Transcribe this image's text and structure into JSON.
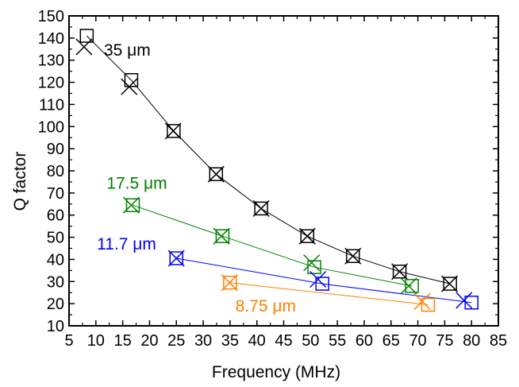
{
  "chart_data": {
    "type": "scatter",
    "title": "",
    "xlabel": "Frequency (MHz)",
    "ylabel": "Q factor",
    "xlim": [
      5,
      85
    ],
    "ylim": [
      10,
      150
    ],
    "xticks": [
      5,
      10,
      15,
      20,
      25,
      30,
      35,
      40,
      45,
      50,
      55,
      60,
      65,
      70,
      75,
      80,
      85
    ],
    "yticks": [
      10,
      20,
      30,
      40,
      50,
      60,
      70,
      80,
      90,
      100,
      110,
      120,
      130,
      140,
      150
    ],
    "grid": false,
    "marker_legend": [
      "square",
      "cross"
    ],
    "series": [
      {
        "name": "35 μm",
        "color": "#000000",
        "square": [
          [
            8.3,
            141
          ],
          [
            16.6,
            121
          ],
          [
            24.5,
            98
          ],
          [
            32.4,
            78.5
          ],
          [
            40.8,
            63
          ],
          [
            49.4,
            50.5
          ],
          [
            57.9,
            41.5
          ],
          [
            66.6,
            34.5
          ],
          [
            76.0,
            29
          ]
        ],
        "cross": [
          [
            7.8,
            136
          ],
          [
            16.2,
            118
          ],
          [
            24.4,
            98
          ],
          [
            32.4,
            78.5
          ],
          [
            40.8,
            63
          ],
          [
            49.4,
            50.5
          ],
          [
            57.9,
            41.5
          ],
          [
            66.6,
            34.5
          ],
          [
            75.9,
            29
          ]
        ]
      },
      {
        "name": "17.5 μm",
        "color": "#008000",
        "square": [
          [
            16.9,
            64.5
          ],
          [
            33.6,
            50.5
          ],
          [
            50.7,
            36.5
          ],
          [
            68.9,
            28
          ]
        ],
        "cross": [
          [
            16.6,
            64.5
          ],
          [
            33.4,
            50.5
          ],
          [
            50.2,
            38.5
          ],
          [
            68.3,
            28
          ]
        ]
      },
      {
        "name": "11.7 μm",
        "color": "#0000ff",
        "square": [
          [
            25.0,
            40.5
          ],
          [
            52.2,
            29
          ],
          [
            80.0,
            20.5
          ]
        ],
        "cross": [
          [
            25.0,
            40.5
          ],
          [
            51.4,
            31
          ],
          [
            78.6,
            21.5
          ]
        ]
      },
      {
        "name": "8.75 μm",
        "color": "#ff7f00",
        "square": [
          [
            35.0,
            29.5
          ],
          [
            71.9,
            19.5
          ]
        ],
        "cross": [
          [
            34.9,
            29.5
          ],
          [
            70.8,
            21
          ]
        ]
      }
    ],
    "labels": [
      {
        "text": "35 μm",
        "x": 11.5,
        "y": 132,
        "color": "#000000"
      },
      {
        "text": "17.5 μm",
        "x": 12.0,
        "y": 72,
        "color": "#008000"
      },
      {
        "text": "11.7 μm",
        "x": 10.2,
        "y": 44.5,
        "color": "#0000ff"
      },
      {
        "text": "8.75 μm",
        "x": 36.0,
        "y": 16.5,
        "color": "#ff7f00"
      }
    ]
  }
}
